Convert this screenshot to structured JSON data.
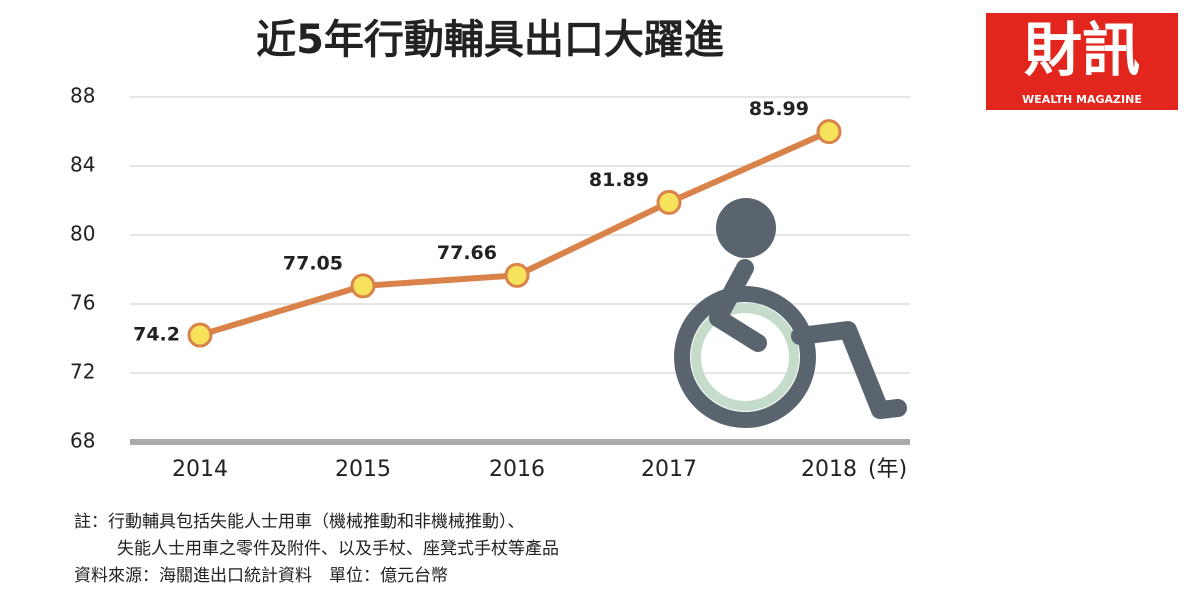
{
  "chart_data": {
    "type": "line",
    "title": "近5年行動輔具出口大躍進",
    "categories": [
      "2014",
      "2015",
      "2016",
      "2017",
      "2018"
    ],
    "x_unit": "(年)",
    "series": [
      {
        "name": "行動輔具出口",
        "color": "#d9824a",
        "marker_fill": "#f7e25b",
        "values": [
          74.2,
          77.05,
          77.66,
          81.89,
          85.99
        ]
      }
    ],
    "ylim": [
      68,
      88
    ],
    "yticks": [
      68,
      72,
      76,
      80,
      84,
      88
    ],
    "grid": true,
    "notes": [
      "註：行動輔具包括失能人士用車（機械推動和非機械推動）、",
      "失能人士用車之零件及附件、以及手杖、座凳式手杖等產品",
      "資料來源：海關進出口統計資料　單位：億元台幣"
    ],
    "logo": {
      "name": "財訊",
      "subtitle": "WEALTH MAGAZINE"
    }
  }
}
